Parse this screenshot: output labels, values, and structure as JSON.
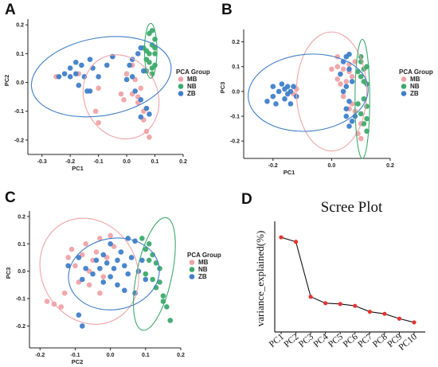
{
  "panels": {
    "A": "A",
    "B": "B",
    "C": "C",
    "D": "D"
  },
  "colors": {
    "MB": "#f0a3a6",
    "NB": "#3daa6b",
    "ZB": "#3f7fc9"
  },
  "chart_data": [
    {
      "id": "A",
      "type": "scatter",
      "xlabel": "PC1",
      "ylabel": "PC2",
      "xlim": [
        -0.35,
        0.2
      ],
      "ylim": [
        -0.25,
        0.22
      ],
      "xticks": [
        -0.3,
        -0.2,
        -0.1,
        0.0,
        0.1,
        0.2
      ],
      "yticks": [
        -0.2,
        -0.1,
        0.0,
        0.1,
        0.2
      ],
      "xtick_labels": [
        "-0.3",
        "-0.2",
        "-0.1",
        "0.0",
        "0.1",
        "0.2"
      ],
      "ytick_labels": [
        "-0.2",
        "-0.1",
        "0.0",
        "0.1",
        "0.2"
      ],
      "legend": {
        "title": "PCA Group",
        "labels": [
          "MB",
          "NB",
          "ZB"
        ],
        "position": "right"
      },
      "series": [
        {
          "name": "MB",
          "color": "#f0a3a6",
          "points": [
            [
              -0.25,
              0.02
            ],
            [
              -0.17,
              0.03
            ],
            [
              -0.1,
              -0.02
            ],
            [
              -0.11,
              -0.1
            ],
            [
              -0.1,
              -0.14
            ],
            [
              0.02,
              -0.04
            ],
            [
              0.04,
              -0.07
            ],
            [
              0.06,
              -0.1
            ],
            [
              0.06,
              -0.13
            ],
            [
              0.07,
              -0.17
            ],
            [
              0.08,
              -0.19
            ],
            [
              0.05,
              -0.02
            ],
            [
              -0.02,
              -0.04
            ],
            [
              0.0,
              0.03
            ],
            [
              0.03,
              0.01
            ],
            [
              -0.05,
              0.09
            ],
            [
              0.04,
              -0.05
            ],
            [
              0.07,
              -0.09
            ],
            [
              -0.01,
              -0.06
            ],
            [
              0.02,
              0.06
            ]
          ]
        },
        {
          "name": "NB",
          "color": "#3daa6b",
          "points": [
            [
              0.08,
              0.17
            ],
            [
              0.09,
              0.18
            ],
            [
              0.1,
              0.15
            ],
            [
              0.09,
              0.13
            ],
            [
              0.07,
              0.11
            ],
            [
              0.08,
              0.1
            ],
            [
              0.1,
              0.1
            ],
            [
              0.07,
              0.08
            ],
            [
              0.08,
              0.07
            ],
            [
              0.1,
              0.06
            ],
            [
              0.09,
              0.05
            ],
            [
              0.07,
              0.04
            ],
            [
              0.09,
              0.03
            ],
            [
              0.06,
              0.12
            ],
            [
              0.1,
              0.12
            ]
          ]
        },
        {
          "name": "ZB",
          "color": "#3f7fc9",
          "points": [
            [
              -0.24,
              0.02
            ],
            [
              -0.22,
              0.03
            ],
            [
              -0.2,
              0.05
            ],
            [
              -0.18,
              0.07
            ],
            [
              -0.2,
              0.02
            ],
            [
              -0.17,
              -0.01
            ],
            [
              -0.16,
              0.06
            ],
            [
              -0.13,
              0.08
            ],
            [
              -0.12,
              0.05
            ],
            [
              -0.15,
              0.02
            ],
            [
              -0.18,
              0.03
            ],
            [
              -0.13,
              -0.03
            ],
            [
              -0.05,
              0.09
            ],
            [
              -0.07,
              0.06
            ],
            [
              0.01,
              0.06
            ],
            [
              0.02,
              0.08
            ],
            [
              0.04,
              0.1
            ],
            [
              0.05,
              0.12
            ],
            [
              0.02,
              0.02
            ],
            [
              0.0,
              0.01
            ],
            [
              0.03,
              -0.03
            ],
            [
              0.05,
              -0.06
            ],
            [
              0.07,
              -0.09
            ],
            [
              0.08,
              -0.11
            ],
            [
              0.05,
              -0.12
            ],
            [
              -0.14,
              -0.03
            ],
            [
              -0.1,
              0.02
            ],
            [
              0.06,
              0.04
            ]
          ]
        }
      ],
      "ellipses": [
        {
          "group": "MB",
          "cx": -0.02,
          "cy": -0.05,
          "rx": 0.13,
          "ry": 0.15,
          "angle": -25
        },
        {
          "group": "NB",
          "cx": 0.085,
          "cy": 0.11,
          "rx": 0.022,
          "ry": 0.095,
          "angle": 0
        },
        {
          "group": "ZB",
          "cx": -0.09,
          "cy": 0.02,
          "rx": 0.25,
          "ry": 0.135,
          "angle": -10
        }
      ]
    },
    {
      "id": "B",
      "type": "scatter",
      "xlabel": "PC1",
      "ylabel": "PC3",
      "xlim": [
        -0.3,
        0.2
      ],
      "ylim": [
        -0.27,
        0.25
      ],
      "xticks": [
        -0.2,
        0.0,
        0.2
      ],
      "yticks": [
        -0.2,
        -0.1,
        0.0,
        0.1,
        0.2
      ],
      "xtick_labels": [
        "-0.2",
        "0.0",
        "0.2"
      ],
      "ytick_labels": [
        "-0.2",
        "-0.1",
        "0.0",
        "0.1",
        "0.2"
      ],
      "legend": {
        "title": "PCA Group",
        "labels": [
          "MB",
          "NB",
          "ZB"
        ],
        "position": "right"
      },
      "series": [
        {
          "name": "MB",
          "color": "#f0a3a6",
          "points": [
            [
              -0.12,
              0.01
            ],
            [
              -0.13,
              -0.01
            ],
            [
              0.02,
              0.1
            ],
            [
              0.04,
              0.09
            ],
            [
              0.06,
              0.08
            ],
            [
              0.02,
              0.05
            ],
            [
              0.03,
              0.03
            ],
            [
              0.07,
              0.06
            ],
            [
              0.06,
              0.11
            ],
            [
              0.04,
              -0.02
            ],
            [
              0.07,
              -0.05
            ],
            [
              0.06,
              -0.07
            ],
            [
              0.02,
              0.14
            ],
            [
              0.0,
              0.09
            ],
            [
              0.08,
              -0.08
            ],
            [
              0.1,
              -0.13
            ],
            [
              0.09,
              -0.17
            ],
            [
              0.1,
              -0.19
            ],
            [
              0.05,
              0.04
            ],
            [
              0.08,
              0.12
            ]
          ]
        },
        {
          "name": "NB",
          "color": "#3daa6b",
          "points": [
            [
              0.1,
              0.14
            ],
            [
              0.12,
              0.1
            ],
            [
              0.09,
              0.08
            ],
            [
              0.1,
              0.06
            ],
            [
              0.11,
              0.04
            ],
            [
              0.12,
              0.03
            ],
            [
              0.11,
              -0.03
            ],
            [
              0.12,
              -0.06
            ],
            [
              0.1,
              -0.09
            ],
            [
              0.12,
              -0.11
            ],
            [
              0.11,
              -0.13
            ],
            [
              0.12,
              -0.16
            ],
            [
              0.1,
              0.12
            ],
            [
              0.09,
              -0.05
            ],
            [
              0.11,
              0.09
            ]
          ]
        },
        {
          "name": "ZB",
          "color": "#3f7fc9",
          "points": [
            [
              -0.22,
              -0.04
            ],
            [
              -0.2,
              -0.02
            ],
            [
              -0.18,
              0.0
            ],
            [
              -0.2,
              0.02
            ],
            [
              -0.17,
              0.03
            ],
            [
              -0.19,
              -0.05
            ],
            [
              -0.16,
              -0.03
            ],
            [
              -0.15,
              -0.01
            ],
            [
              -0.15,
              0.02
            ],
            [
              -0.14,
              -0.05
            ],
            [
              -0.13,
              0.02
            ],
            [
              -0.16,
              0.01
            ],
            [
              -0.12,
              -0.02
            ],
            [
              -0.14,
              0.0
            ],
            [
              0.04,
              0.12
            ],
            [
              0.05,
              0.14
            ],
            [
              0.06,
              0.09
            ],
            [
              0.03,
              0.07
            ],
            [
              0.05,
              0.02
            ],
            [
              0.06,
              -0.04
            ],
            [
              0.05,
              -0.1
            ],
            [
              0.07,
              -0.12
            ],
            [
              0.06,
              -0.14
            ],
            [
              0.08,
              -0.1
            ],
            [
              0.04,
              0.0
            ],
            [
              0.05,
              -0.07
            ],
            [
              0.07,
              0.04
            ],
            [
              0.06,
              0.15
            ]
          ]
        }
      ],
      "ellipses": [
        {
          "group": "MB",
          "cx": 0.0,
          "cy": 0.0,
          "rx": 0.12,
          "ry": 0.24,
          "angle": 0
        },
        {
          "group": "NB",
          "cx": 0.105,
          "cy": -0.03,
          "rx": 0.025,
          "ry": 0.24,
          "angle": 0
        },
        {
          "group": "ZB",
          "cx": -0.08,
          "cy": -0.005,
          "rx": 0.205,
          "ry": 0.155,
          "angle": -5
        }
      ]
    },
    {
      "id": "C",
      "type": "scatter",
      "xlabel": "PC2",
      "ylabel": "PC3",
      "xlim": [
        -0.23,
        0.2
      ],
      "ylim": [
        -0.28,
        0.22
      ],
      "xticks": [
        -0.2,
        -0.1,
        0.0,
        0.1,
        0.2
      ],
      "yticks": [
        -0.2,
        -0.1,
        0.0,
        0.1,
        0.2
      ],
      "xtick_labels": [
        "-0.2",
        "-0.1",
        "0.0",
        "0.1",
        "0.2"
      ],
      "ytick_labels": [
        "-0.2",
        "-0.1",
        "0.0",
        "0.1",
        "0.2"
      ],
      "legend": {
        "title": "PCA Group",
        "labels": [
          "MB",
          "NB",
          "ZB"
        ],
        "position": "right"
      },
      "series": [
        {
          "name": "MB",
          "color": "#f0a3a6",
          "points": [
            [
              -0.18,
              -0.11
            ],
            [
              -0.16,
              -0.12
            ],
            [
              -0.14,
              -0.13
            ],
            [
              -0.13,
              -0.08
            ],
            [
              -0.11,
              0.08
            ],
            [
              -0.1,
              0.02
            ],
            [
              -0.09,
              -0.04
            ],
            [
              -0.08,
              0.06
            ],
            [
              -0.07,
              0.1
            ],
            [
              -0.06,
              -0.05
            ],
            [
              -0.05,
              0.04
            ],
            [
              -0.04,
              0.07
            ],
            [
              -0.03,
              0.12
            ],
            [
              -0.02,
              -0.02
            ],
            [
              -0.01,
              0.05
            ],
            [
              0.0,
              0.13
            ],
            [
              0.01,
              0.09
            ],
            [
              -0.12,
              0.05
            ],
            [
              -0.06,
              0.0
            ],
            [
              -0.03,
              -0.08
            ]
          ]
        },
        {
          "name": "NB",
          "color": "#3daa6b",
          "points": [
            [
              0.1,
              0.08
            ],
            [
              0.12,
              0.06
            ],
            [
              0.13,
              0.03
            ],
            [
              0.11,
              0.04
            ],
            [
              0.14,
              0.01
            ],
            [
              0.1,
              -0.01
            ],
            [
              0.12,
              -0.03
            ],
            [
              0.13,
              -0.06
            ],
            [
              0.15,
              -0.09
            ],
            [
              0.16,
              -0.13
            ],
            [
              0.17,
              -0.18
            ],
            [
              0.14,
              -0.04
            ],
            [
              0.09,
              0.12
            ],
            [
              0.11,
              0.1
            ],
            [
              0.15,
              -0.11
            ]
          ]
        },
        {
          "name": "ZB",
          "color": "#3f7fc9",
          "points": [
            [
              -0.12,
              0.02
            ],
            [
              -0.09,
              0.05
            ],
            [
              -0.08,
              -0.03
            ],
            [
              -0.07,
              0.01
            ],
            [
              -0.05,
              -0.01
            ],
            [
              -0.04,
              0.04
            ],
            [
              -0.03,
              0.01
            ],
            [
              -0.02,
              0.06
            ],
            [
              -0.01,
              0.03
            ],
            [
              0.0,
              -0.02
            ],
            [
              0.01,
              0.01
            ],
            [
              0.02,
              0.04
            ],
            [
              0.03,
              0.07
            ],
            [
              0.04,
              0.02
            ],
            [
              0.05,
              -0.01
            ],
            [
              0.06,
              0.05
            ],
            [
              0.07,
              0.11
            ],
            [
              0.08,
              0.0
            ],
            [
              0.09,
              0.04
            ],
            [
              0.02,
              -0.05
            ],
            [
              0.04,
              -0.07
            ],
            [
              0.07,
              -0.08
            ],
            [
              -0.08,
              -0.2
            ],
            [
              -0.09,
              -0.16
            ],
            [
              0.0,
              0.1
            ],
            [
              0.05,
              0.12
            ],
            [
              0.1,
              -0.03
            ],
            [
              -0.02,
              -0.04
            ]
          ]
        }
      ],
      "ellipses": [
        {
          "group": "MB",
          "cx": -0.06,
          "cy": 0.0,
          "rx": 0.135,
          "ry": 0.2,
          "angle": -30
        },
        {
          "group": "NB",
          "cx": 0.125,
          "cy": -0.01,
          "rx": 0.05,
          "ry": 0.21,
          "angle": 12
        },
        {
          "group": "ZB",
          "cx": 0.01,
          "cy": -0.01,
          "rx": 0.13,
          "ry": 0.13,
          "angle": -10
        }
      ]
    },
    {
      "id": "D",
      "type": "line",
      "title": "Scree Plot",
      "xlabel": "",
      "ylabel": "variance_explained(%)",
      "categories": [
        "PC1",
        "PC2",
        "PC3",
        "PC4",
        "PC5",
        "PC6",
        "PC7",
        "PC8",
        "PC9",
        "PC10"
      ],
      "values": [
        4.55,
        4.38,
        2.32,
        2.08,
        2.05,
        1.98,
        1.76,
        1.68,
        1.5,
        1.36
      ],
      "ylim": [
        1.0,
        5.0
      ],
      "color": "#e8332f"
    }
  ]
}
